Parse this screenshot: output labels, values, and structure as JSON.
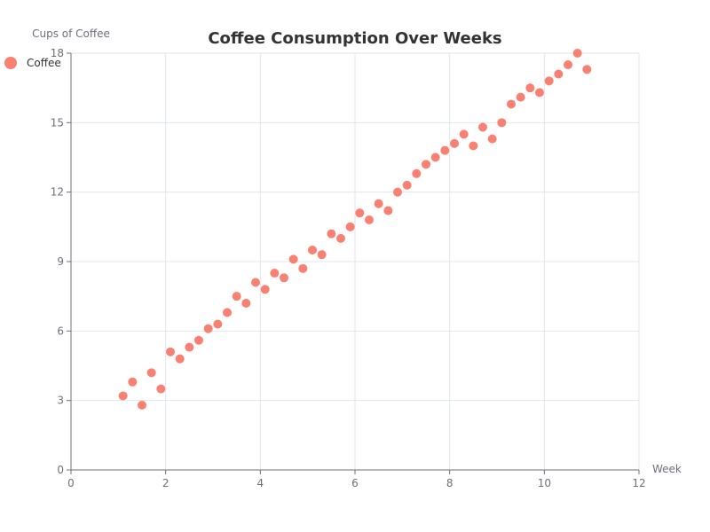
{
  "chart_data": {
    "type": "scatter",
    "title": "Coffee Consumption Over Weeks",
    "xlabel": "Week",
    "ylabel": "Cups of Coffee",
    "xlim": [
      0,
      12
    ],
    "ylim": [
      0,
      18
    ],
    "x_ticks": [
      "0",
      "2",
      "4",
      "6",
      "8",
      "10",
      "12"
    ],
    "y_ticks": [
      "0",
      "3",
      "6",
      "9",
      "12",
      "15",
      "18"
    ],
    "grid": true,
    "legend_position": "top-left",
    "series": [
      {
        "name": "Coffee",
        "color": "#fa8072",
        "points": [
          [
            1.1,
            3.2
          ],
          [
            1.3,
            3.8
          ],
          [
            1.5,
            2.8
          ],
          [
            1.7,
            4.2
          ],
          [
            1.9,
            3.5
          ],
          [
            2.1,
            5.1
          ],
          [
            2.3,
            4.8
          ],
          [
            2.5,
            5.3
          ],
          [
            2.7,
            5.6
          ],
          [
            2.9,
            6.1
          ],
          [
            3.1,
            6.3
          ],
          [
            3.3,
            6.8
          ],
          [
            3.5,
            7.5
          ],
          [
            3.7,
            7.2
          ],
          [
            3.9,
            8.1
          ],
          [
            4.1,
            7.8
          ],
          [
            4.3,
            8.5
          ],
          [
            4.5,
            8.3
          ],
          [
            4.7,
            9.1
          ],
          [
            4.9,
            8.7
          ],
          [
            5.1,
            9.5
          ],
          [
            5.3,
            9.3
          ],
          [
            5.5,
            10.2
          ],
          [
            5.7,
            10.0
          ],
          [
            5.9,
            10.5
          ],
          [
            6.1,
            11.1
          ],
          [
            6.3,
            10.8
          ],
          [
            6.5,
            11.5
          ],
          [
            6.7,
            11.2
          ],
          [
            6.9,
            12.0
          ],
          [
            7.1,
            12.3
          ],
          [
            7.3,
            12.8
          ],
          [
            7.5,
            13.2
          ],
          [
            7.7,
            13.5
          ],
          [
            7.9,
            13.8
          ],
          [
            8.1,
            14.1
          ],
          [
            8.3,
            14.5
          ],
          [
            8.5,
            14.0
          ],
          [
            8.7,
            14.8
          ],
          [
            8.9,
            14.3
          ],
          [
            9.1,
            15.0
          ],
          [
            9.3,
            15.8
          ],
          [
            9.5,
            16.1
          ],
          [
            9.7,
            16.5
          ],
          [
            9.9,
            16.3
          ],
          [
            10.1,
            16.8
          ],
          [
            10.3,
            17.1
          ],
          [
            10.5,
            17.5
          ],
          [
            10.7,
            18.0
          ],
          [
            10.9,
            17.3
          ]
        ]
      }
    ]
  }
}
